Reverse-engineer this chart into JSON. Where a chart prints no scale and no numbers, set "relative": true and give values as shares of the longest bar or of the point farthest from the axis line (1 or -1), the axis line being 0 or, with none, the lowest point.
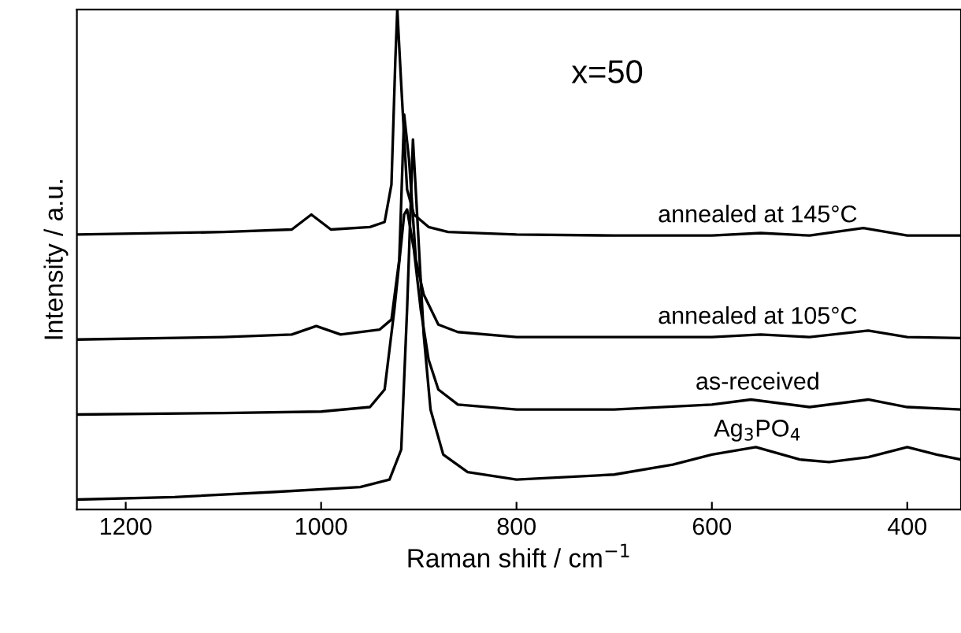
{
  "chart_data": {
    "type": "line",
    "relative": true,
    "xlabel": "Raman shift / cm$^{−1}$",
    "ylabel": "Intensity / a.u.",
    "xlim": [
      1250,
      345
    ],
    "xticks": [
      1200,
      1000,
      800,
      600,
      400
    ],
    "tick_labels": "x",
    "grid": false,
    "legend": false,
    "marker": "none",
    "line_style": "solid",
    "annotations": [
      "x=50"
    ],
    "series": [
      {
        "name": "annealed at 145°C",
        "color": "#000000",
        "x": [
          1250,
          1100,
          1030,
          1010,
          990,
          950,
          935,
          928,
          924,
          922,
          918,
          912,
          905,
          890,
          870,
          800,
          700,
          600,
          550,
          500,
          445,
          400,
          345
        ],
        "values": [
          0.55,
          0.555,
          0.56,
          0.59,
          0.56,
          0.565,
          0.575,
          0.65,
          0.9,
          1.0,
          0.85,
          0.64,
          0.59,
          0.565,
          0.555,
          0.55,
          0.548,
          0.548,
          0.553,
          0.548,
          0.563,
          0.548,
          0.548
        ]
      },
      {
        "name": "annealed at 105°C",
        "color": "#000000",
        "x": [
          1250,
          1100,
          1030,
          1005,
          980,
          940,
          928,
          920,
          915,
          910,
          903,
          895,
          880,
          860,
          800,
          700,
          600,
          550,
          500,
          440,
          400,
          345
        ],
        "values": [
          0.34,
          0.345,
          0.35,
          0.367,
          0.35,
          0.36,
          0.38,
          0.5,
          0.79,
          0.7,
          0.5,
          0.43,
          0.37,
          0.355,
          0.345,
          0.345,
          0.345,
          0.35,
          0.345,
          0.358,
          0.345,
          0.343
        ]
      },
      {
        "name": "as-received",
        "color": "#000000",
        "x": [
          1250,
          1100,
          1000,
          950,
          935,
          925,
          915,
          912,
          905,
          898,
          890,
          880,
          860,
          800,
          700,
          600,
          560,
          500,
          440,
          400,
          345
        ],
        "values": [
          0.19,
          0.193,
          0.196,
          0.205,
          0.24,
          0.4,
          0.59,
          0.6,
          0.52,
          0.4,
          0.3,
          0.24,
          0.21,
          0.2,
          0.2,
          0.21,
          0.22,
          0.205,
          0.22,
          0.205,
          0.2
        ]
      },
      {
        "name": "Ag$_{3}$PO$_{4}$",
        "color": "#000000",
        "x": [
          1250,
          1150,
          1050,
          960,
          930,
          918,
          912,
          906,
          902,
          895,
          888,
          875,
          850,
          800,
          700,
          640,
          600,
          555,
          510,
          480,
          440,
          400,
          370,
          345
        ],
        "values": [
          0.02,
          0.025,
          0.035,
          0.045,
          0.06,
          0.12,
          0.4,
          0.74,
          0.6,
          0.35,
          0.2,
          0.11,
          0.075,
          0.06,
          0.07,
          0.09,
          0.11,
          0.125,
          0.1,
          0.095,
          0.105,
          0.125,
          0.11,
          0.1
        ]
      }
    ]
  }
}
